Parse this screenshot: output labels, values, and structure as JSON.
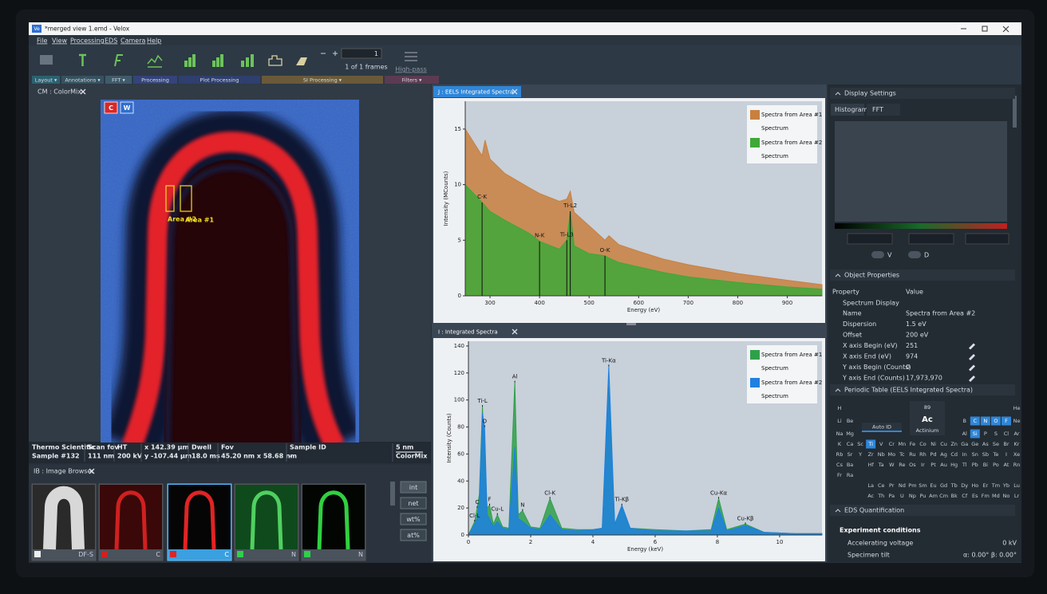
{
  "window": {
    "icon": "Ve",
    "title": "*merged view 1.emd - Velox"
  },
  "menu": [
    "File",
    "View",
    "Processing",
    "EDS",
    "Camera",
    "Help"
  ],
  "toolbar": {
    "frame": "1",
    "frames": "1 of 1 frames",
    "filter": "High-pass",
    "groups": [
      "Layout ▾",
      "Annotations ▾",
      "FFT ▾",
      "Processing",
      "Plot Processing",
      "SI Processing ▾",
      "Filters ▾"
    ]
  },
  "image": {
    "tab": "CM : ColorMix",
    "channels": [
      "C",
      "W"
    ],
    "areas": [
      "Area #2",
      "Area #1"
    ],
    "info": [
      [
        "Thermo Scientific",
        "Sample #132"
      ],
      [
        "Scan fov",
        "111 nm"
      ],
      [
        "HT",
        "200 kV"
      ],
      [
        "x  142.39 µm",
        "y  -107.44 µm"
      ],
      [
        "Dwell",
        "18.0 ms"
      ],
      [
        "Fov",
        "45.20 nm x 58.68 nm"
      ],
      [
        "Sample ID",
        "-"
      ],
      [
        "5 nm",
        "ColorMix"
      ]
    ]
  },
  "browser": {
    "tab": "IB : Image Browser",
    "thumbs": [
      "DF-S",
      "C",
      "C",
      "N",
      "N"
    ],
    "buttons": [
      "int",
      "net",
      "wt%",
      "at%"
    ]
  },
  "eels": {
    "tab": "J : EELS Integrated Spectra",
    "type": "area",
    "xlabel": "Energy (eV)",
    "ylabel": "Intensity (MCounts)",
    "x": [
      250,
      284,
      290,
      300,
      330,
      380,
      400,
      440,
      455,
      462,
      470,
      500,
      532,
      540,
      560,
      600,
      650,
      700,
      800,
      900,
      970
    ],
    "xlim": [
      250,
      970
    ],
    "ylim": [
      0,
      17.5
    ],
    "xticks": [
      300,
      400,
      500,
      600,
      700,
      800,
      900
    ],
    "yticks": [
      0,
      5,
      10,
      15
    ],
    "series": [
      {
        "name": "Spectra from Area #1",
        "subtitle": "Spectrum",
        "color": "#c9803f",
        "values": [
          15,
          12.6,
          14,
          12.3,
          11,
          9.7,
          9.2,
          8.5,
          8.7,
          9.4,
          7.5,
          6.3,
          5.0,
          5.4,
          4.6,
          4,
          3.3,
          2.8,
          2,
          1.4,
          1
        ]
      },
      {
        "name": "Spectra from Area #2",
        "subtitle": "Spectrum",
        "color": "#3ea838",
        "values": [
          10,
          8.4,
          8.1,
          7.6,
          6.8,
          5.6,
          4.9,
          4.2,
          5,
          7.6,
          4.5,
          3.8,
          3.6,
          3.4,
          3,
          2.6,
          2.1,
          1.7,
          1.2,
          0.8,
          0.6
        ]
      }
    ],
    "annotation_lines": true,
    "annotations": [
      {
        "label": "C-K",
        "x": 284
      },
      {
        "label": "N-K",
        "x": 400
      },
      {
        "label": "Ti-L3",
        "x": 455
      },
      {
        "label": "Ti-L2",
        "x": 462
      },
      {
        "label": "O-K",
        "x": 532
      }
    ]
  },
  "eds": {
    "tab": "I : Integrated Spectra",
    "type": "area",
    "xlabel": "Energy (keV)",
    "ylabel": "Intensity (Counts)",
    "x": [
      0,
      0.2,
      0.28,
      0.35,
      0.45,
      0.52,
      0.6,
      0.68,
      0.8,
      0.93,
      1.1,
      1.3,
      1.49,
      1.6,
      1.74,
      2.0,
      2.3,
      2.62,
      3.0,
      3.5,
      4.0,
      4.3,
      4.51,
      4.7,
      4.93,
      5.2,
      6,
      7,
      7.8,
      8.04,
      8.3,
      8.9,
      9.5,
      10.5,
      11.36
    ],
    "xlim": [
      0,
      11.36
    ],
    "ylim": [
      0,
      143.5
    ],
    "xticks": [
      0,
      2,
      4,
      6,
      8,
      10
    ],
    "yticks": [
      0,
      20,
      40,
      60,
      80,
      100,
      120,
      140
    ],
    "series": [
      {
        "name": "Spectra from Area #1",
        "subtitle": "Spectrum",
        "color": "#2fa04a",
        "values": [
          0,
          10,
          20,
          30,
          95,
          60,
          20,
          22,
          8,
          15,
          6,
          5,
          113,
          15,
          18,
          6,
          5,
          27,
          5,
          4,
          4,
          5,
          110,
          8,
          20,
          5,
          4,
          3,
          4,
          27,
          4,
          8,
          2,
          1,
          1
        ]
      },
      {
        "name": "Spectra from Area #2",
        "subtitle": "Spectrum",
        "color": "#1f80e0",
        "values": [
          0,
          8,
          12,
          25,
          90,
          80,
          15,
          12,
          6,
          10,
          5,
          4,
          65,
          12,
          10,
          5,
          4,
          15,
          4,
          3,
          4,
          5,
          125,
          8,
          22,
          5,
          3,
          3,
          3,
          20,
          3,
          7,
          2,
          1,
          1
        ]
      }
    ],
    "annotation_lines": false,
    "annotations": [
      {
        "label": "Cl-L",
        "x": 0.2
      },
      {
        "label": "C",
        "x": 0.28
      },
      {
        "label": "Ti-L",
        "x": 0.45
      },
      {
        "label": "O",
        "x": 0.52
      },
      {
        "label": "F",
        "x": 0.68
      },
      {
        "label": "Cu-L",
        "x": 0.93
      },
      {
        "label": "Al",
        "x": 1.49
      },
      {
        "label": "N",
        "x": 1.74
      },
      {
        "label": "Cl-K",
        "x": 2.62
      },
      {
        "label": "Ti-Kα",
        "x": 4.51
      },
      {
        "label": "Ti-Kβ",
        "x": 4.93
      },
      {
        "label": "Cu-Kα",
        "x": 8.04
      },
      {
        "label": "Cu-Kβ",
        "x": 8.9
      }
    ]
  },
  "display": {
    "title": "Display Settings",
    "tabs": [
      "Histogram",
      "FFT"
    ],
    "toggles": [
      "V",
      "D"
    ]
  },
  "properties": {
    "title": "Object Properties",
    "header": [
      "Property",
      "Value"
    ],
    "group": "Spectrum Display",
    "rows": [
      [
        "Name",
        "Spectra from Area #2"
      ],
      [
        "Dispersion",
        "1.5 eV"
      ],
      [
        "Offset",
        "200 eV"
      ],
      [
        "X axis Begin (eV)",
        "251"
      ],
      [
        "X axis End (eV)",
        "974"
      ],
      [
        "Y axis Begin (Counts)",
        "0"
      ],
      [
        "Y axis End (Counts)",
        "17,973,970"
      ]
    ]
  },
  "periodic": {
    "title": "Periodic Table (EELS Integrated Spectra)",
    "auto_id": "Auto ID",
    "element": {
      "number": 89,
      "symbol": "Ac",
      "name": "Actinium"
    },
    "rows": [
      [
        "H",
        null,
        null,
        null,
        null,
        null,
        null,
        null,
        null,
        null,
        null,
        null,
        null,
        null,
        null,
        null,
        null,
        "He"
      ],
      [
        "Li",
        "Be",
        null,
        null,
        null,
        null,
        null,
        null,
        null,
        null,
        null,
        null,
        "B",
        "C",
        "N",
        "O",
        "F",
        "Ne"
      ],
      [
        "Na",
        "Mg",
        null,
        null,
        null,
        null,
        null,
        null,
        null,
        null,
        null,
        null,
        "Al",
        "Si",
        "P",
        "S",
        "Cl",
        "Ar"
      ],
      [
        "K",
        "Ca",
        "Sc",
        "Ti",
        "V",
        "Cr",
        "Mn",
        "Fe",
        "Co",
        "Ni",
        "Cu",
        "Zn",
        "Ga",
        "Ge",
        "As",
        "Se",
        "Br",
        "Kr"
      ],
      [
        "Rb",
        "Sr",
        "Y",
        "Zr",
        "Nb",
        "Mo",
        "Tc",
        "Ru",
        "Rh",
        "Pd",
        "Ag",
        "Cd",
        "In",
        "Sn",
        "Sb",
        "Te",
        "I",
        "Xe"
      ],
      [
        "Cs",
        "Ba",
        null,
        "Hf",
        "Ta",
        "W",
        "Re",
        "Os",
        "Ir",
        "Pt",
        "Au",
        "Hg",
        "Tl",
        "Pb",
        "Bi",
        "Po",
        "At",
        "Rn"
      ],
      [
        "Fr",
        "Ra"
      ]
    ],
    "lanthanides": [
      "La",
      "Ce",
      "Pr",
      "Nd",
      "Pm",
      "Sm",
      "Eu",
      "Gd",
      "Tb",
      "Dy",
      "Ho",
      "Er",
      "Tm",
      "Yb",
      "Lu"
    ],
    "actinides": [
      "Ac",
      "Th",
      "Pa",
      "U",
      "Np",
      "Pu",
      "Am",
      "Cm",
      "Bk",
      "Cf",
      "Es",
      "Fm",
      "Md",
      "No",
      "Lr"
    ],
    "selected": [
      "C",
      "N",
      "O",
      "F",
      "Si",
      "Ti"
    ]
  },
  "quant": {
    "title": "EDS Quantification",
    "section": "Experiment conditions",
    "rows": [
      [
        "Accelerating voltage",
        "0 kV"
      ],
      [
        "Specimen tilt",
        "α: 0.00°   β: 0.00°"
      ]
    ]
  }
}
